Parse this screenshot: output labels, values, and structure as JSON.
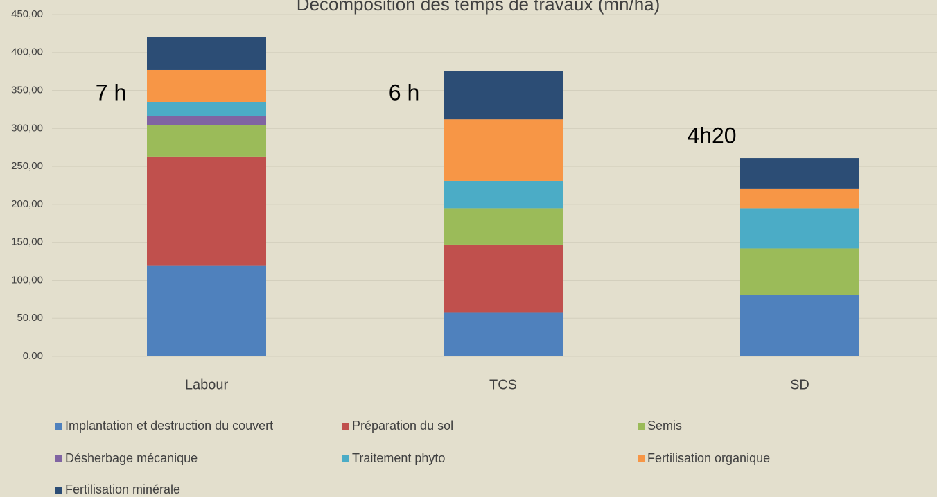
{
  "chart_data": {
    "type": "bar",
    "stacked": true,
    "title": "Décomposition des temps de travaux (mn/ha)",
    "categories": [
      "Labour",
      "TCS",
      "SD"
    ],
    "series": [
      {
        "name": "Implantation et destruction du couvert",
        "color": "#4f81bd",
        "values": [
          119,
          58,
          81
        ]
      },
      {
        "name": "Préparation du sol",
        "color": "#c0504d",
        "values": [
          144,
          89,
          0
        ]
      },
      {
        "name": "Semis",
        "color": "#9bbb59",
        "values": [
          41,
          48,
          61
        ]
      },
      {
        "name": "Désherbage mécanique",
        "color": "#8064a2",
        "values": [
          12,
          0,
          0
        ]
      },
      {
        "name": "Traitement phyto",
        "color": "#4bacc6",
        "values": [
          19,
          36,
          53
        ]
      },
      {
        "name": "Fertilisation organique",
        "color": "#f79646",
        "values": [
          42,
          81,
          26
        ]
      },
      {
        "name": "Fertilisation minérale",
        "color": "#2c4d75",
        "values": [
          43,
          64,
          40
        ]
      }
    ],
    "annotations": [
      "7 h",
      "6 h",
      "4h20"
    ],
    "ylim": [
      0,
      450
    ],
    "yticks": [
      {
        "value": 0,
        "label": "0,00"
      },
      {
        "value": 50,
        "label": "50,00"
      },
      {
        "value": 100,
        "label": "100,00"
      },
      {
        "value": 150,
        "label": "150,00"
      },
      {
        "value": 200,
        "label": "200,00"
      },
      {
        "value": 250,
        "label": "250,00"
      },
      {
        "value": 300,
        "label": "300,00"
      },
      {
        "value": 350,
        "label": "350,00"
      },
      {
        "value": 400,
        "label": "400,00"
      },
      {
        "value": 450,
        "label": "450,00"
      }
    ],
    "grid": true
  }
}
